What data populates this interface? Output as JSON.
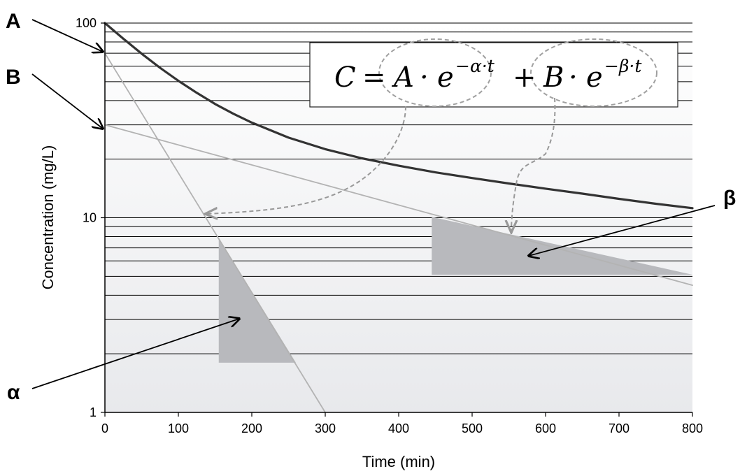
{
  "chart_data": {
    "type": "line",
    "xlabel": "Time (min)",
    "ylabel": "Concentration (mg/L)",
    "xlim": [
      0,
      800
    ],
    "ylim": [
      1,
      100
    ],
    "yscale": "log",
    "grid": "horizontal",
    "x_ticks": [
      "0",
      "100",
      "200",
      "300",
      "400",
      "500",
      "600",
      "700",
      "800"
    ],
    "y_ticks": [
      "1",
      "10",
      "100"
    ],
    "series": [
      {
        "role": "total",
        "color": "#333333",
        "x": [
          0,
          25,
          50,
          75,
          100,
          125,
          150,
          175,
          200,
          250,
          300,
          350,
          400,
          450,
          500,
          550,
          600,
          650,
          700,
          750,
          800
        ],
        "y": [
          100,
          83.1,
          69.6,
          58.9,
          50.5,
          43.8,
          38.4,
          34.2,
          30.8,
          25.8,
          22.5,
          20.2,
          18.5,
          17.1,
          16.0,
          15.0,
          14.1,
          13.3,
          12.5,
          11.8,
          11.2
        ]
      },
      {
        "role": "alpha phase",
        "color": "#b3b3b3",
        "x": [
          0,
          300
        ],
        "y": [
          70,
          1
        ]
      },
      {
        "role": "beta phase",
        "color": "#b3b3b3",
        "x": [
          0,
          800
        ],
        "y": [
          30,
          4.5
        ]
      }
    ],
    "slope_triangles": [
      {
        "name": "alpha",
        "x": [
          155,
          260
        ],
        "y": [
          7.9,
          1.8
        ],
        "color": "#b8b9bd"
      },
      {
        "name": "beta",
        "x": [
          445,
          800
        ],
        "y": [
          10.1,
          5.1
        ],
        "color": "#b8b9bd"
      }
    ],
    "equation": {
      "lhs": "C",
      "eq": "=",
      "A": "A",
      "dot": "·",
      "e": "e",
      "exp_alpha": "−α·t",
      "plus": "+",
      "B": "B",
      "exp_beta": "−β·t"
    },
    "annotations": {
      "A": "A",
      "B": "B",
      "alpha": "α",
      "beta": "β"
    }
  }
}
